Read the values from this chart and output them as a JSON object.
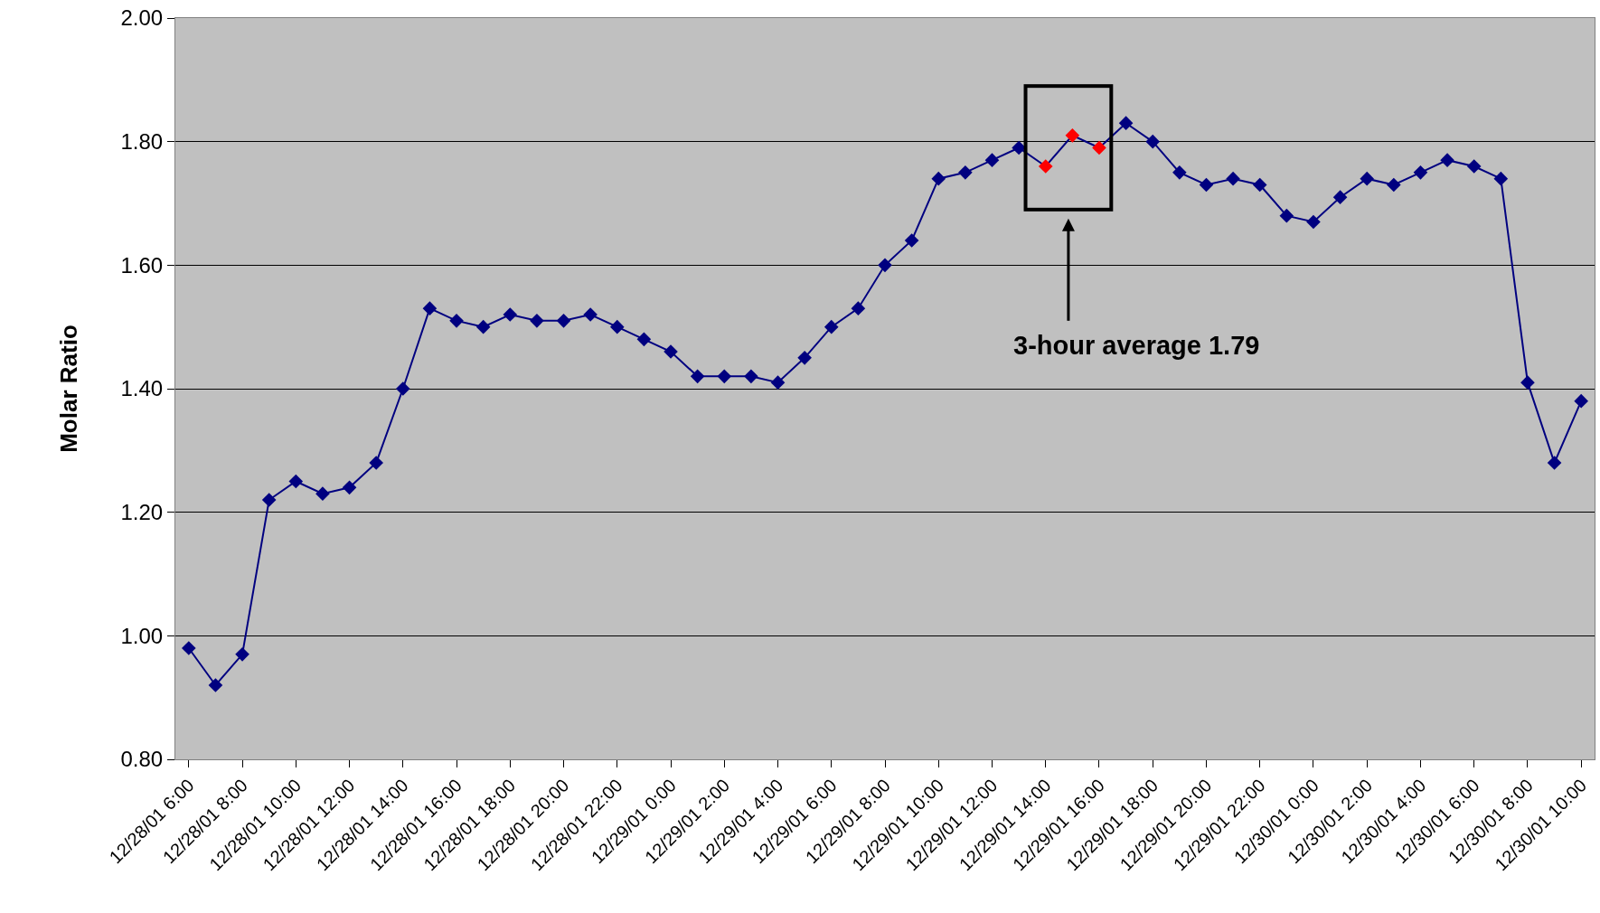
{
  "chart_data": {
    "type": "line",
    "ylabel": "Molar Ratio",
    "annotations": [
      "3-hour average 1.79"
    ],
    "categories": [
      "12/28/01 6:00",
      null,
      "12/28/01 8:00",
      null,
      "12/28/01 10:00",
      null,
      "12/28/01 12:00",
      null,
      "12/28/01 14:00",
      null,
      "12/28/01 16:00",
      null,
      "12/28/01 18:00",
      null,
      "12/28/01 20:00",
      null,
      "12/28/01 22:00",
      null,
      "12/29/01 0:00",
      null,
      "12/29/01 2:00",
      null,
      "12/29/01 4:00",
      null,
      "12/29/01 6:00",
      null,
      "12/29/01 8:00",
      null,
      "12/29/01 10:00",
      null,
      "12/29/01 12:00",
      null,
      "12/29/01 14:00",
      null,
      "12/29/01 16:00",
      null,
      "12/29/01 18:00",
      null,
      "12/29/01 20:00",
      null,
      "12/29/01 22:00",
      null,
      "12/30/01 0:00",
      null,
      "12/30/01 2:00",
      null,
      "12/30/01 4:00",
      null,
      "12/30/01 6:00",
      null,
      "12/30/01 8:00",
      null,
      "12/30/01 10:00"
    ],
    "series": [
      {
        "color": "#000080",
        "values": [
          0.98,
          0.92,
          0.97,
          1.22,
          1.25,
          1.23,
          1.24,
          1.28,
          1.4,
          1.53,
          1.51,
          1.5,
          1.52,
          1.51,
          1.51,
          1.52,
          1.5,
          1.48,
          1.46,
          1.42,
          1.42,
          1.42,
          1.41,
          1.45,
          1.5,
          1.53,
          1.6,
          1.64,
          1.74,
          1.75,
          1.77,
          1.79,
          1.76,
          1.81,
          1.79,
          1.83,
          1.8,
          1.75,
          1.73,
          1.74,
          1.73,
          1.68,
          1.67,
          1.71,
          1.74,
          1.73,
          1.75,
          1.77,
          1.76,
          1.74,
          1.41,
          1.28,
          1.38
        ],
        "colors": [
          "#000080",
          "#000080",
          "#000080",
          "#000080",
          "#000080",
          "#000080",
          "#000080",
          "#000080",
          "#000080",
          "#000080",
          "#000080",
          "#000080",
          "#000080",
          "#000080",
          "#000080",
          "#000080",
          "#000080",
          "#000080",
          "#000080",
          "#000080",
          "#000080",
          "#000080",
          "#000080",
          "#000080",
          "#000080",
          "#000080",
          "#000080",
          "#000080",
          "#000080",
          "#000080",
          "#000080",
          "#000080",
          "#ff0000",
          "#ff0000",
          "#ff0000",
          "#000080",
          "#000080",
          "#000080",
          "#000080",
          "#000080",
          "#000080",
          "#000080",
          "#000080",
          "#000080",
          "#000080",
          "#000080",
          "#000080",
          "#000080",
          "#000080",
          "#000080",
          "#000080",
          "#000080",
          "#000080"
        ]
      }
    ],
    "ylim": [
      0.8,
      2.0
    ],
    "yticks": [
      {
        "value": 0.8,
        "label": "0.80"
      },
      {
        "value": 1.0,
        "label": "1.00"
      },
      {
        "value": 1.2,
        "label": "1.20"
      },
      {
        "value": 1.4,
        "label": "1.40"
      },
      {
        "value": 1.6,
        "label": "1.60"
      },
      {
        "value": 1.8,
        "label": "1.80"
      },
      {
        "value": 2.0,
        "label": "2.00"
      }
    ],
    "grid": "y",
    "marker": "diamond",
    "line_style": "solid"
  }
}
